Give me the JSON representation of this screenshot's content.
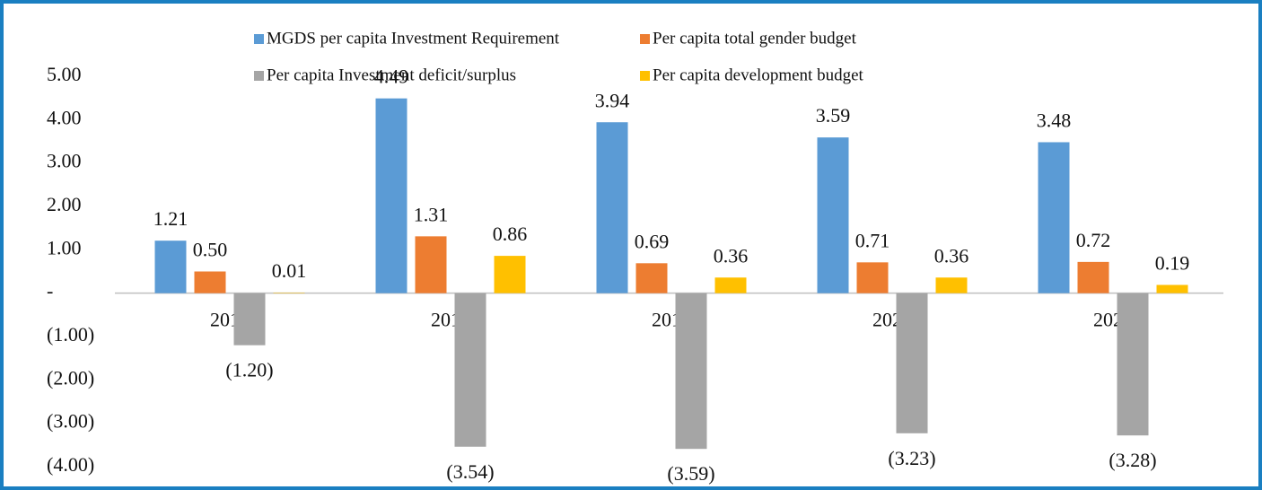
{
  "chart_data": {
    "type": "bar",
    "categories": [
      "2017",
      "2018",
      "2019",
      "2020",
      "2021"
    ],
    "series": [
      {
        "name": "MGDS per capita Investment Requirement",
        "color": "#5b9bd5",
        "values": [
          1.21,
          4.49,
          3.94,
          3.59,
          3.48
        ],
        "value_labels": [
          "1.21",
          "4.49",
          "3.94",
          "3.59",
          "3.48"
        ]
      },
      {
        "name": "Per capita total gender budget",
        "color": "#ed7d31",
        "values": [
          0.5,
          1.31,
          0.69,
          0.71,
          0.72
        ],
        "value_labels": [
          "0.50",
          "1.31",
          "0.69",
          "0.71",
          "0.72"
        ]
      },
      {
        "name": "Per capita Investment deficit/surplus",
        "color": "#a5a5a5",
        "values": [
          -1.2,
          -3.54,
          -3.59,
          -3.23,
          -3.28
        ],
        "value_labels": [
          "(1.20)",
          "(3.54)",
          "(3.59)",
          "(3.23)",
          "(3.28)"
        ]
      },
      {
        "name": "Per capita development budget",
        "color": "#ffc000",
        "values": [
          0.01,
          0.86,
          0.36,
          0.36,
          0.19
        ],
        "value_labels": [
          "0.01",
          "0.86",
          "0.36",
          "0.36",
          "0.19"
        ]
      }
    ],
    "ylim": [
      -4,
      5
    ],
    "yticks": [
      {
        "value": 5,
        "label": "5.00"
      },
      {
        "value": 4,
        "label": "4.00"
      },
      {
        "value": 3,
        "label": "3.00"
      },
      {
        "value": 2,
        "label": "2.00"
      },
      {
        "value": 1,
        "label": "1.00"
      },
      {
        "value": 0,
        "label": "-"
      },
      {
        "value": -1,
        "label": "(1.00)"
      },
      {
        "value": -2,
        "label": "(2.00)"
      },
      {
        "value": -3,
        "label": "(3.00)"
      },
      {
        "value": -4,
        "label": "(4.00)"
      }
    ]
  }
}
